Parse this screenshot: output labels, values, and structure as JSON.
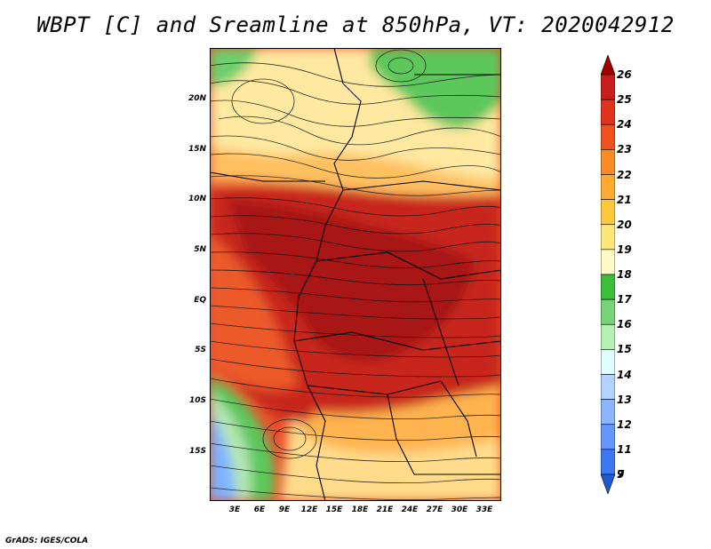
{
  "title": "WBPT [C] and Sreamline at 850hPa, VT: 2020042912",
  "credit": "GrADS: IGES/COLA",
  "map": {
    "lat_labels": [
      "20N",
      "15N",
      "10N",
      "5N",
      "EQ",
      "5S",
      "10S",
      "15S"
    ],
    "lon_labels": [
      "3E",
      "6E",
      "9E",
      "12E",
      "15E",
      "18E",
      "21E",
      "24E",
      "27E",
      "30E",
      "33E"
    ]
  },
  "colorbar": {
    "labels": [
      "26",
      "25",
      "24",
      "23",
      "22",
      "21",
      "20",
      "19",
      "18",
      "17",
      "16",
      "15",
      "14",
      "13",
      "12",
      "11",
      "9",
      "7"
    ],
    "colors": [
      "#a00000",
      "#c81e1e",
      "#e1321e",
      "#f0501e",
      "#fa8c28",
      "#ffaa32",
      "#ffc83c",
      "#ffe678",
      "#fffac8",
      "#3cbe3c",
      "#78d278",
      "#b4f0b4",
      "#e1ffff",
      "#b4d2ff",
      "#8cb4ff",
      "#6496ff",
      "#3c78f0",
      "#1e5ad2"
    ],
    "top_color": "#a00000",
    "bottom_color": "#1e5ad2"
  }
}
